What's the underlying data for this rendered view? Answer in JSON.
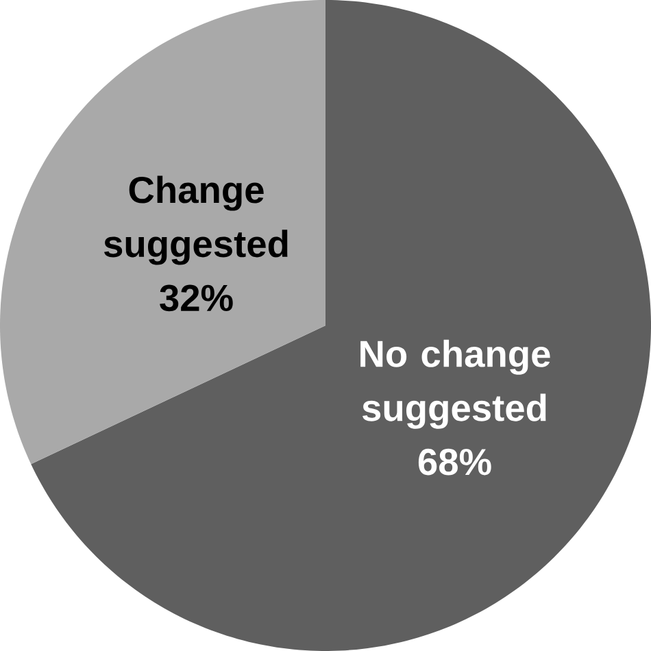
{
  "chart_data": {
    "type": "pie",
    "categories": [
      "No change suggested",
      "Change suggested"
    ],
    "values": [
      68,
      32
    ],
    "value_labels": [
      "68%",
      "32%"
    ],
    "colors": [
      "#5f5f5f",
      "#a9a9a9"
    ]
  }
}
